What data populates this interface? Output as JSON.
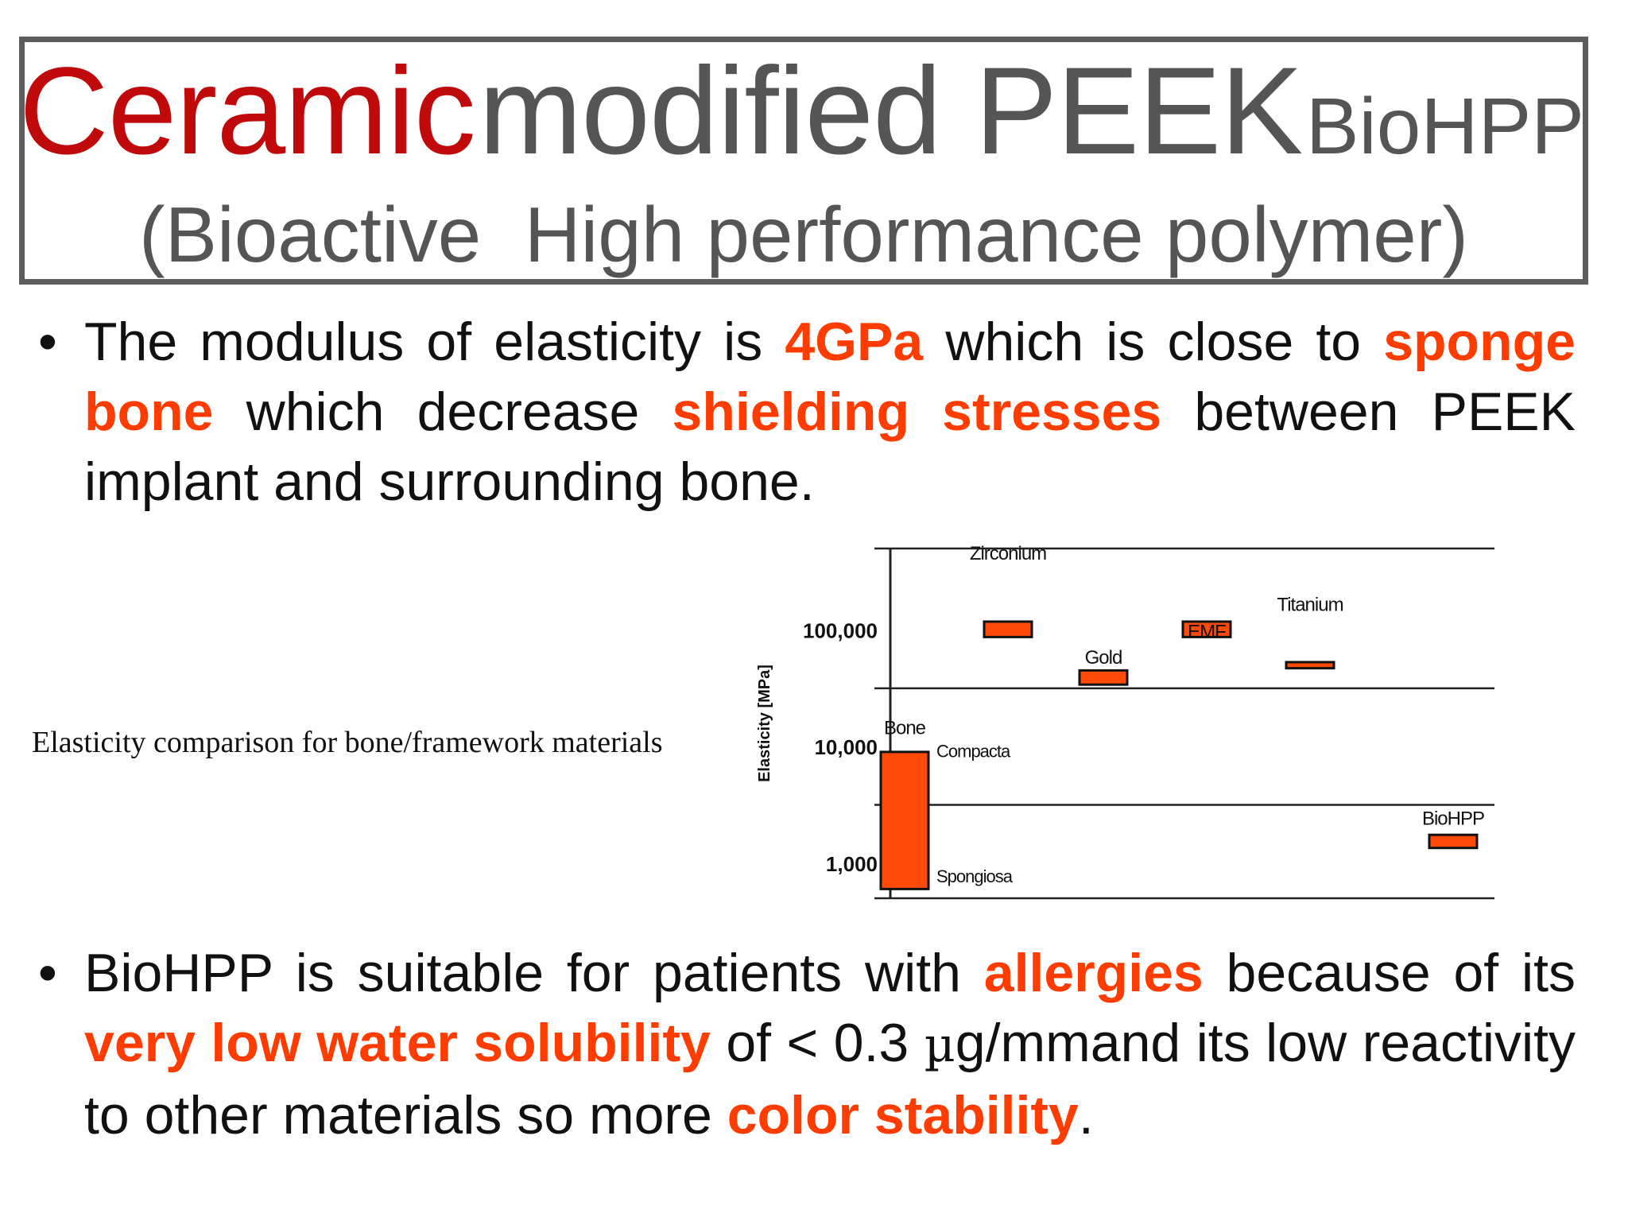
{
  "title": {
    "accent": "Ceramic",
    "main": "modified PEEK",
    "small": "BioHPP",
    "subtitle": "(Bioactive  High performance polymer)"
  },
  "bullet1": {
    "t1": "The modulus of elasticity is ",
    "h1": "4GPa",
    "t2": " which is close to ",
    "h2": "sponge bone",
    "t3": " which decrease ",
    "h3": "shielding stresses",
    "t4": " between PEEK implant and surrounding bone."
  },
  "caption": "Elasticity comparison for bone/framework materials",
  "bullet2": {
    "t1": "BioHPP is suitable for patients with ",
    "h1": "allergies",
    "t2": " because of its ",
    "h2": "very low water solubility",
    "t3": " of < 0.3 ",
    "mu": "µ",
    "t4": "g/mm",
    "t5": "and its low reactivity to other materials so more ",
    "h3": "color stability",
    "t6": "."
  },
  "colors": {
    "title_accent": "#c0090b",
    "title_gray": "#555555",
    "highlight": "#ff3c00",
    "bar_fill": "#ff4a0a"
  },
  "chart_data": {
    "type": "bar",
    "ylabel": "Elasticity [MPa]",
    "yscale": "log",
    "ylim": [
      500,
      500000
    ],
    "yticks": [
      1000,
      10000,
      100000
    ],
    "ytick_labels": [
      "1,000",
      "10,000",
      "100,000"
    ],
    "categories": [
      "Bone",
      "Zirconium",
      "Gold",
      "EMF",
      "Titanium",
      "BioHPP"
    ],
    "category_labels": [
      {
        "text": "Bone",
        "value": 15000
      },
      {
        "text": "Zirconium",
        "value": 470000
      },
      {
        "text": "Gold",
        "value": 60000
      },
      {
        "text": "EMF",
        "value": 100000
      },
      {
        "text": "Titanium",
        "value": 170000
      },
      {
        "text": "BioHPP",
        "value": 2500
      }
    ],
    "ranges": [
      {
        "category": "Bone",
        "low": 600,
        "high": 9000
      },
      {
        "category": "Zirconium",
        "low": 87000,
        "high": 118000
      },
      {
        "category": "Gold",
        "low": 34000,
        "high": 45000
      },
      {
        "category": "EMF",
        "low": 87000,
        "high": 118000
      },
      {
        "category": "Titanium",
        "low": 47000,
        "high": 53000
      },
      {
        "category": "BioHPP",
        "low": 1350,
        "high": 1750
      }
    ],
    "annotations": [
      {
        "text": "Compacta",
        "value": 9500
      },
      {
        "text": "Spongiosa",
        "value": 800
      }
    ],
    "grid": true
  }
}
